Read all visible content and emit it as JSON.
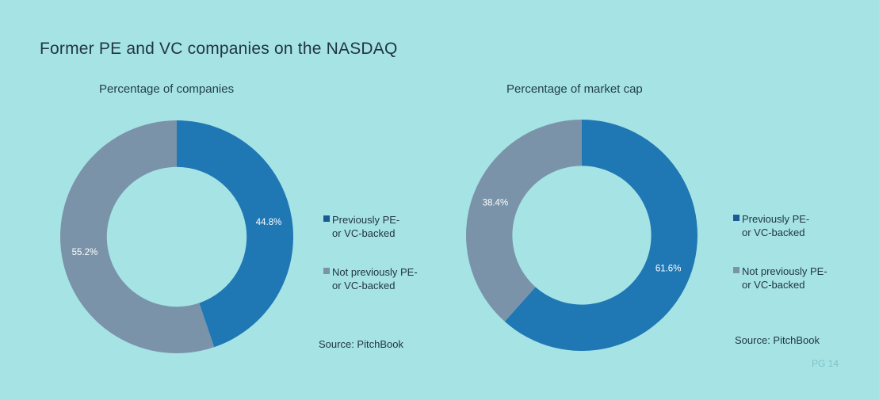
{
  "page": {
    "title": "Former PE and VC companies on the NASDAQ",
    "source_label": "Source: PitchBook",
    "page_number": "PG 14"
  },
  "colors": {
    "background": "#a6e3e5",
    "previously_backed": "#1f77b4",
    "not_previously_backed": "#7a93a9",
    "legend_previously_backed": "#1a5b91"
  },
  "chart_data": [
    {
      "type": "pie",
      "title": "Percentage of companies",
      "categories": [
        "Previously PE-\nor VC-backed",
        "Not previously PE-\nor VC-backed"
      ],
      "values": [
        44.8,
        55.2
      ],
      "labels": [
        "44.8%",
        "55.2%"
      ],
      "donut": true,
      "legend": "right"
    },
    {
      "type": "pie",
      "title": "Percentage of market cap",
      "categories": [
        "Previously PE-\nor VC-backed",
        "Not previously PE-\nor VC-backed"
      ],
      "values": [
        61.6,
        38.4
      ],
      "labels": [
        "61.6%",
        "38.4%"
      ],
      "donut": true,
      "legend": "right"
    }
  ]
}
